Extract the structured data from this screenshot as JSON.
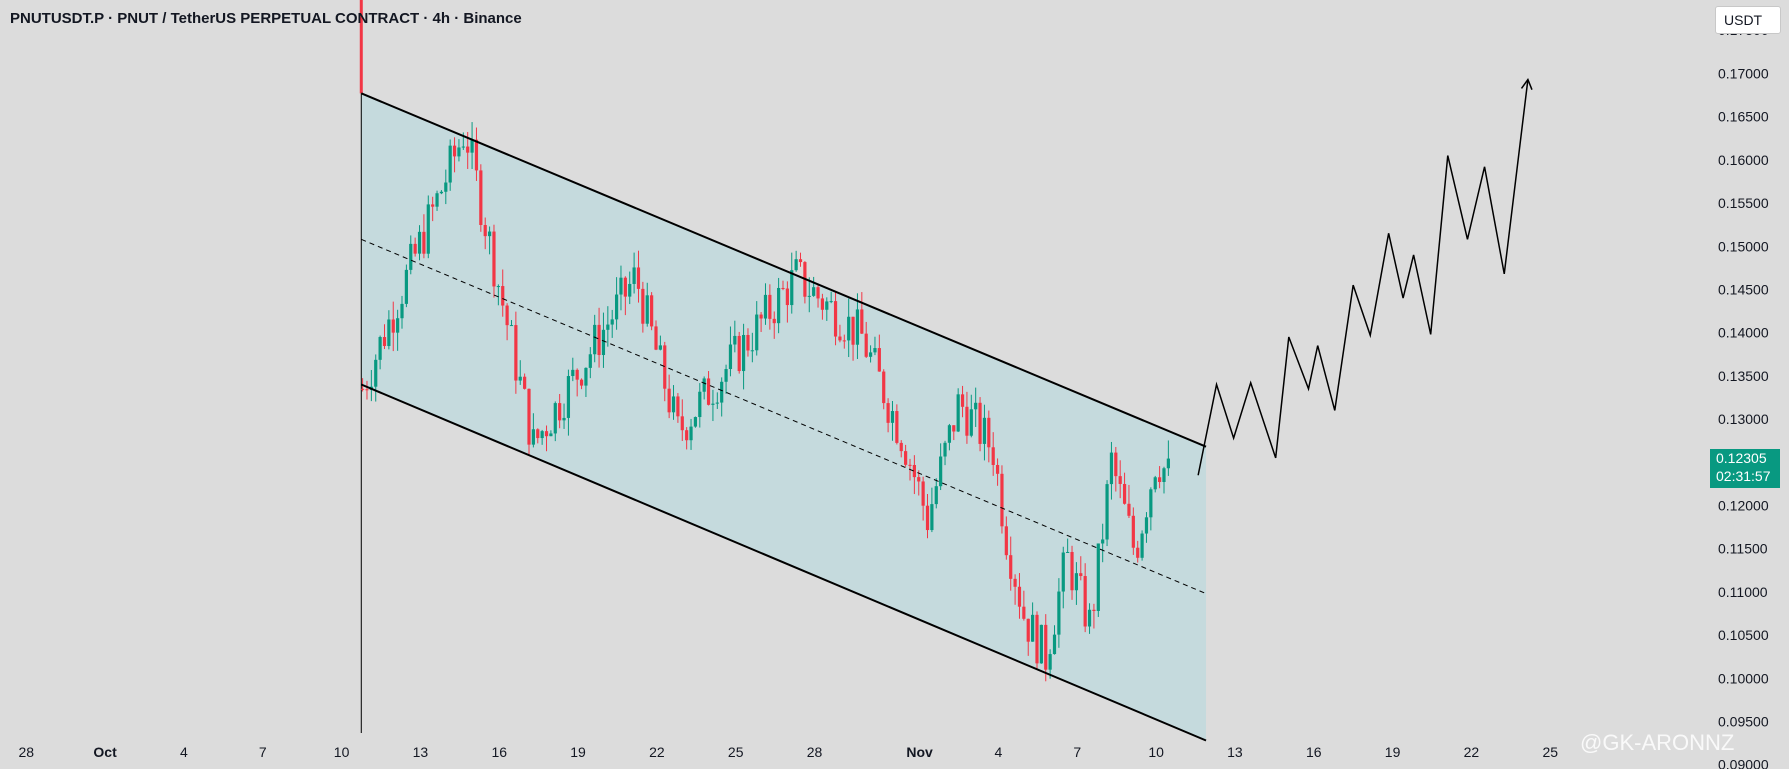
{
  "header": {
    "title": "PNUTUSDT.P · PNUT / TetherUS PERPETUAL CONTRACT · 4h · Binance",
    "currency": "USDT"
  },
  "price_tag": {
    "price": "0.12305",
    "countdown": "02:31:57"
  },
  "watermark": "@GK-ARONNZ",
  "colors": {
    "background": "#dcdcdc",
    "up_candle": "#089981",
    "down_candle": "#f23645",
    "channel_fill": "#c5dadd",
    "line": "#000000"
  },
  "chart_data": {
    "type": "candlestick",
    "symbol": "PNUTUSDT.P",
    "timeframe": "4h",
    "xlabel": "",
    "ylabel": "",
    "ylim": [
      0.0895,
      0.1785
    ],
    "y_ticks": [
      "0.17500",
      "0.17000",
      "0.16500",
      "0.16000",
      "0.15500",
      "0.15000",
      "0.14500",
      "0.14000",
      "0.13500",
      "0.13000",
      "0.12500",
      "0.12000",
      "0.11500",
      "0.11000",
      "0.10500",
      "0.10000",
      "0.09500",
      "0.09000"
    ],
    "x_ticks": [
      {
        "label": "28",
        "day": -3
      },
      {
        "label": "Oct",
        "day": 0
      },
      {
        "label": "4",
        "day": 3
      },
      {
        "label": "7",
        "day": 6
      },
      {
        "label": "10",
        "day": 9
      },
      {
        "label": "13",
        "day": 12
      },
      {
        "label": "16",
        "day": 15
      },
      {
        "label": "19",
        "day": 18
      },
      {
        "label": "22",
        "day": 21
      },
      {
        "label": "25",
        "day": 24
      },
      {
        "label": "28",
        "day": 27
      },
      {
        "label": "Nov",
        "day": 31
      },
      {
        "label": "4",
        "day": 34
      },
      {
        "label": "7",
        "day": 37
      },
      {
        "label": "10",
        "day": 40
      },
      {
        "label": "13",
        "day": 43
      },
      {
        "label": "16",
        "day": 46
      },
      {
        "label": "19",
        "day": 49
      },
      {
        "label": "22",
        "day": 52
      },
      {
        "label": "25",
        "day": 55
      }
    ],
    "x_range_days": [
      -4,
      60.7
    ],
    "key_points": [
      {
        "day": 9.8,
        "price": 0.1335
      },
      {
        "day": 13.7,
        "price": 0.1635
      },
      {
        "day": 16.3,
        "price": 0.127
      },
      {
        "day": 20.2,
        "price": 0.1465
      },
      {
        "day": 21.8,
        "price": 0.1285
      },
      {
        "day": 26.3,
        "price": 0.1465
      },
      {
        "day": 28.8,
        "price": 0.1395
      },
      {
        "day": 30.4,
        "price": 0.1275
      },
      {
        "day": 31.3,
        "price": 0.1185
      },
      {
        "day": 32.5,
        "price": 0.132
      },
      {
        "day": 33.8,
        "price": 0.1265
      },
      {
        "day": 34.3,
        "price": 0.1165
      },
      {
        "day": 35.0,
        "price": 0.107
      },
      {
        "day": 35.8,
        "price": 0.1025
      },
      {
        "day": 36.6,
        "price": 0.114
      },
      {
        "day": 37.5,
        "price": 0.106
      },
      {
        "day": 38.3,
        "price": 0.125
      },
      {
        "day": 39.2,
        "price": 0.1145
      },
      {
        "day": 40.0,
        "price": 0.1255
      },
      {
        "day": 40.6,
        "price": 0.123
      }
    ],
    "channel": {
      "upper": [
        {
          "day": 9.75,
          "price": 0.1677
        },
        {
          "day": 41.9,
          "price": 0.1268
        }
      ],
      "lower": [
        {
          "day": 9.75,
          "price": 0.134
        },
        {
          "day": 41.9,
          "price": 0.0928
        }
      ],
      "mid": [
        {
          "day": 9.75,
          "price": 0.1508
        },
        {
          "day": 41.9,
          "price": 0.1098
        }
      ]
    },
    "vertical_marker_day": 9.75,
    "projection": [
      {
        "day": 41.6,
        "price": 0.1235
      },
      {
        "day": 42.3,
        "price": 0.134
      },
      {
        "day": 42.95,
        "price": 0.1278
      },
      {
        "day": 43.6,
        "price": 0.1342
      },
      {
        "day": 44.55,
        "price": 0.1255
      },
      {
        "day": 45.05,
        "price": 0.1395
      },
      {
        "day": 45.8,
        "price": 0.1335
      },
      {
        "day": 46.15,
        "price": 0.1385
      },
      {
        "day": 46.8,
        "price": 0.131
      },
      {
        "day": 47.5,
        "price": 0.1455
      },
      {
        "day": 48.15,
        "price": 0.1397
      },
      {
        "day": 48.85,
        "price": 0.1515
      },
      {
        "day": 49.4,
        "price": 0.144
      },
      {
        "day": 49.8,
        "price": 0.149
      },
      {
        "day": 50.45,
        "price": 0.1398
      },
      {
        "day": 51.1,
        "price": 0.1605
      },
      {
        "day": 51.85,
        "price": 0.1508
      },
      {
        "day": 52.5,
        "price": 0.1592
      },
      {
        "day": 53.25,
        "price": 0.1468
      },
      {
        "day": 54.15,
        "price": 0.1693
      }
    ]
  }
}
